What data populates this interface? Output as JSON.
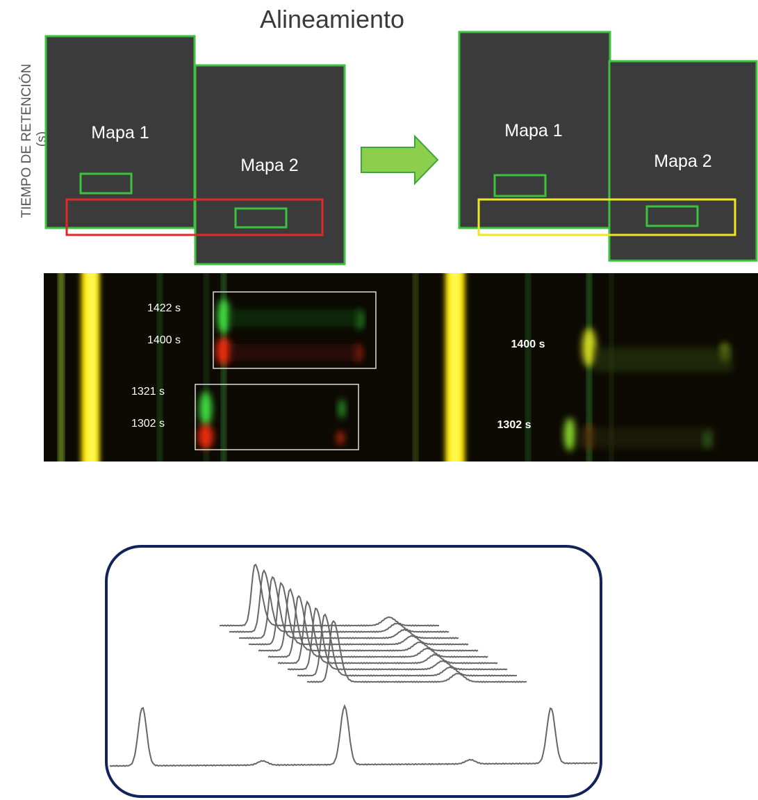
{
  "title": "Alineamiento",
  "axis_label": [
    "TIEMPO DE RETENCIÓN",
    "(s)"
  ],
  "before": {
    "map1": "Mapa 1",
    "map2": "Mapa 2"
  },
  "after": {
    "map1": "Mapa 1",
    "map2": "Mapa 2"
  },
  "gel": {
    "left_labels": [
      "1422 s",
      "1400 s",
      "1321 s",
      "1302 s"
    ],
    "right_labels": [
      "1400 s",
      "1302 s"
    ]
  }
}
